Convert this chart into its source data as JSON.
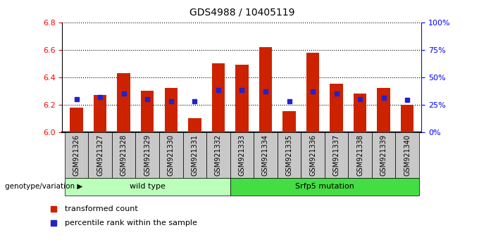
{
  "title": "GDS4988 / 10405119",
  "samples": [
    "GSM921326",
    "GSM921327",
    "GSM921328",
    "GSM921329",
    "GSM921330",
    "GSM921331",
    "GSM921332",
    "GSM921333",
    "GSM921334",
    "GSM921335",
    "GSM921336",
    "GSM921337",
    "GSM921338",
    "GSM921339",
    "GSM921340"
  ],
  "transformed_count": [
    6.18,
    6.27,
    6.43,
    6.3,
    6.32,
    6.1,
    6.5,
    6.49,
    6.62,
    6.15,
    6.58,
    6.35,
    6.28,
    6.32,
    6.2
  ],
  "percentile_rank": [
    30,
    32,
    35,
    30,
    28,
    28,
    38,
    38,
    37,
    28,
    37,
    35,
    30,
    31,
    29
  ],
  "y_min": 6.0,
  "y_max": 6.8,
  "y_ticks": [
    6.0,
    6.2,
    6.4,
    6.6,
    6.8
  ],
  "right_y_ticks": [
    0,
    25,
    50,
    75,
    100
  ],
  "right_y_labels": [
    "0%",
    "25%",
    "50%",
    "75%",
    "100%"
  ],
  "bar_color": "#CC2200",
  "dot_color": "#2222CC",
  "groups": [
    {
      "label": "wild type",
      "start": 0,
      "end": 7,
      "color": "#BBFFBB"
    },
    {
      "label": "Srfp5 mutation",
      "start": 7,
      "end": 15,
      "color": "#44DD44"
    }
  ],
  "genotype_label": "genotype/variation",
  "legend_items": [
    {
      "label": "transformed count",
      "color": "#CC2200"
    },
    {
      "label": "percentile rank within the sample",
      "color": "#2222CC"
    }
  ],
  "tick_bg_color": "#C8C8C8",
  "plot_bg": "#FFFFFF",
  "bar_width": 0.55
}
